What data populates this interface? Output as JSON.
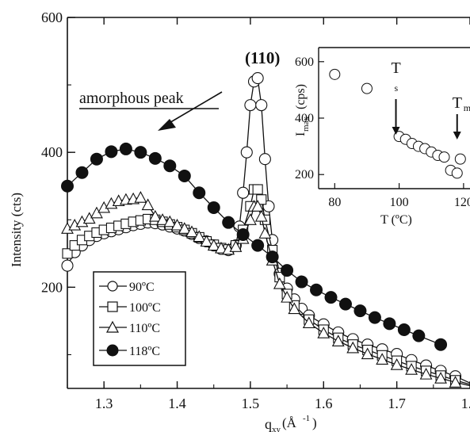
{
  "chart_data": [
    {
      "type": "scatter",
      "title": "",
      "xlabel": "q",
      "xlabel_sub": "xy",
      "xlabel_unit": "(Å",
      "xlabel_sup": "-1",
      "xlabel_close": ")",
      "ylabel": "Intensity (cts)",
      "xlim": [
        1.25,
        1.8
      ],
      "ylim": [
        50,
        600
      ],
      "xticks": [
        1.3,
        1.4,
        1.5,
        1.6,
        1.7,
        1.8
      ],
      "xtick_labels": [
        "1.3",
        "1.4",
        "1.5",
        "1.6",
        "1.7",
        "1.8"
      ],
      "yticks": [
        200,
        400,
        600
      ],
      "ytick_labels": [
        "200",
        "400",
        "600"
      ],
      "legend_position": "bottom-left",
      "series": [
        {
          "name": "90ºC",
          "marker": "circle-open",
          "x": [
            1.25,
            1.26,
            1.27,
            1.28,
            1.29,
            1.3,
            1.31,
            1.32,
            1.33,
            1.34,
            1.35,
            1.36,
            1.37,
            1.38,
            1.39,
            1.4,
            1.41,
            1.42,
            1.43,
            1.44,
            1.45,
            1.46,
            1.47,
            1.48,
            1.485,
            1.49,
            1.495,
            1.5,
            1.505,
            1.51,
            1.515,
            1.52,
            1.525,
            1.53,
            1.54,
            1.55,
            1.56,
            1.57,
            1.58,
            1.6,
            1.62,
            1.64,
            1.66,
            1.68,
            1.7,
            1.72,
            1.74,
            1.76,
            1.78,
            1.8
          ],
          "values": [
            232,
            252,
            262,
            270,
            276,
            280,
            283,
            286,
            289,
            292,
            294,
            296,
            295,
            293,
            290,
            287,
            284,
            279,
            273,
            268,
            262,
            257,
            255,
            262,
            290,
            340,
            400,
            470,
            505,
            510,
            470,
            390,
            320,
            270,
            220,
            198,
            182,
            168,
            158,
            145,
            133,
            123,
            115,
            108,
            101,
            92,
            84,
            76,
            68,
            58
          ]
        },
        {
          "name": "100ºC",
          "marker": "square-open",
          "x": [
            1.25,
            1.26,
            1.27,
            1.28,
            1.29,
            1.3,
            1.31,
            1.32,
            1.33,
            1.34,
            1.35,
            1.36,
            1.37,
            1.38,
            1.39,
            1.4,
            1.41,
            1.42,
            1.43,
            1.44,
            1.45,
            1.46,
            1.47,
            1.48,
            1.49,
            1.5,
            1.505,
            1.51,
            1.515,
            1.52,
            1.53,
            1.54,
            1.55,
            1.56,
            1.58,
            1.6,
            1.62,
            1.64,
            1.66,
            1.68,
            1.7,
            1.72,
            1.74,
            1.76,
            1.78,
            1.8
          ],
          "values": [
            250,
            262,
            270,
            276,
            281,
            285,
            288,
            291,
            294,
            297,
            299,
            301,
            300,
            297,
            293,
            289,
            285,
            280,
            274,
            268,
            263,
            258,
            256,
            262,
            285,
            320,
            345,
            345,
            330,
            300,
            255,
            215,
            190,
            173,
            152,
            137,
            125,
            115,
            107,
            99,
            91,
            83,
            76,
            69,
            62,
            56
          ]
        },
        {
          "name": "110ºC",
          "marker": "triangle-open",
          "x": [
            1.25,
            1.26,
            1.27,
            1.28,
            1.29,
            1.3,
            1.31,
            1.32,
            1.33,
            1.34,
            1.35,
            1.36,
            1.37,
            1.38,
            1.39,
            1.4,
            1.41,
            1.42,
            1.43,
            1.44,
            1.45,
            1.46,
            1.47,
            1.48,
            1.49,
            1.5,
            1.505,
            1.51,
            1.515,
            1.52,
            1.53,
            1.54,
            1.55,
            1.56,
            1.58,
            1.6,
            1.62,
            1.64,
            1.66,
            1.68,
            1.7,
            1.72,
            1.74,
            1.76,
            1.78,
            1.8
          ],
          "values": [
            287,
            292,
            297,
            302,
            310,
            318,
            324,
            328,
            330,
            331,
            333,
            322,
            305,
            300,
            297,
            292,
            287,
            282,
            275,
            268,
            262,
            258,
            256,
            260,
            272,
            300,
            320,
            320,
            305,
            280,
            240,
            205,
            185,
            168,
            147,
            132,
            120,
            110,
            101,
            93,
            85,
            78,
            71,
            65,
            59,
            54
          ]
        },
        {
          "name": "118ºC",
          "marker": "circle-filled",
          "x": [
            1.25,
            1.27,
            1.29,
            1.31,
            1.33,
            1.35,
            1.37,
            1.39,
            1.41,
            1.43,
            1.45,
            1.47,
            1.49,
            1.51,
            1.53,
            1.55,
            1.57,
            1.59,
            1.61,
            1.63,
            1.65,
            1.67,
            1.69,
            1.71,
            1.73,
            1.76
          ],
          "values": [
            350,
            370,
            390,
            401,
            405,
            400,
            391,
            380,
            365,
            340,
            318,
            296,
            278,
            262,
            245,
            225,
            208,
            196,
            185,
            175,
            165,
            155,
            146,
            137,
            128,
            115
          ]
        }
      ]
    },
    {
      "type": "scatter",
      "title": "",
      "annotation_top": "(110)",
      "xlabel": "T (ºC)",
      "ylabel": "I",
      "ylabel_sub": "max",
      "ylabel_unit": " (cps)",
      "xlim": [
        75,
        122
      ],
      "ylim": [
        150,
        650
      ],
      "xticks": [
        80,
        100,
        120
      ],
      "xtick_labels": [
        "80",
        "100",
        "120"
      ],
      "yticks": [
        200,
        400,
        600
      ],
      "ytick_labels": [
        "200",
        "400",
        "600"
      ],
      "series": [
        {
          "name": "",
          "marker": "circle-open",
          "x": [
            80,
            90,
            100,
            102,
            104,
            106,
            108,
            110,
            112,
            114,
            116,
            118,
            119
          ],
          "values": [
            555,
            505,
            335,
            325,
            310,
            300,
            292,
            280,
            268,
            262,
            215,
            205,
            255
          ]
        }
      ],
      "markers": [
        {
          "label": "T",
          "label_sub": "s",
          "x": 99
        },
        {
          "label": "T",
          "label_sub": "m",
          "x": 118
        }
      ]
    }
  ],
  "annotation": {
    "text": "amorphous peak"
  }
}
